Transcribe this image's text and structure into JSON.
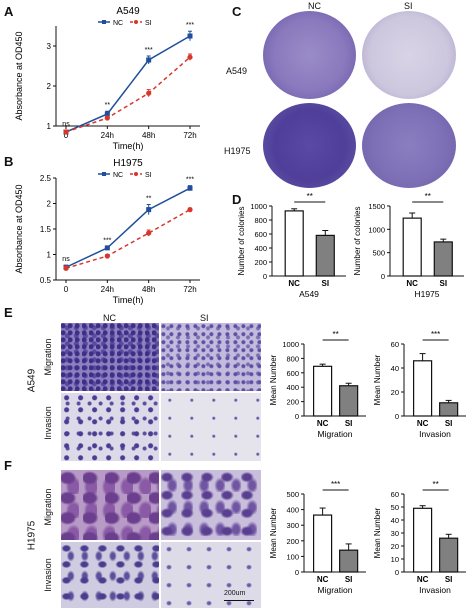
{
  "panels": {
    "A": "A",
    "B": "B",
    "C": "C",
    "D": "D",
    "E": "E",
    "F": "F"
  },
  "colors": {
    "nc": "#1f4e9c",
    "si": "#d7372b",
    "bar_nc": "#ffffff",
    "bar_si": "#808080",
    "stain": "#5a3f9a"
  },
  "panel_c": {
    "col_labels": [
      "NC",
      "SI"
    ],
    "row_labels": [
      "A549",
      "H1975"
    ]
  },
  "panel_e": {
    "cell_line": "A549",
    "col_labels": [
      "NC",
      "SI"
    ],
    "row_labels": [
      "Migration",
      "Invasion"
    ]
  },
  "panel_f": {
    "cell_line": "H1975",
    "row_labels": [
      "Migration",
      "Invasion"
    ],
    "scale_bar": "200um"
  },
  "chart_data": [
    {
      "id": "A",
      "type": "line",
      "title": "A549",
      "xlabel": "Time(h)",
      "ylabel": "Absorbance at OD450",
      "categories": [
        "0",
        "24h",
        "48h",
        "72h"
      ],
      "ylim": [
        1,
        3.5
      ],
      "yticks": [
        1,
        2,
        3
      ],
      "series": [
        {
          "name": "NC",
          "values": [
            0.85,
            1.3,
            2.65,
            3.25
          ],
          "err": [
            0.05,
            0.07,
            0.1,
            0.12
          ]
        },
        {
          "name": "SI",
          "values": [
            0.85,
            1.2,
            1.82,
            2.72
          ],
          "err": [
            0.05,
            0.05,
            0.09,
            0.08
          ]
        }
      ],
      "significance": [
        "ns",
        "**",
        "***",
        "***"
      ]
    },
    {
      "id": "B",
      "type": "line",
      "title": "H1975",
      "xlabel": "Time(h)",
      "ylabel": "Absorbance at OD450",
      "categories": [
        "0",
        "24h",
        "48h",
        "72h"
      ],
      "ylim": [
        0.5,
        2.5
      ],
      "yticks": [
        0.5,
        1.0,
        1.5,
        2.0,
        2.5
      ],
      "series": [
        {
          "name": "NC",
          "values": [
            0.75,
            1.13,
            1.88,
            2.3
          ],
          "err": [
            0.04,
            0.03,
            0.1,
            0.05
          ]
        },
        {
          "name": "SI",
          "values": [
            0.73,
            0.97,
            1.42,
            1.88
          ],
          "err": [
            0.04,
            0.03,
            0.06,
            0.03
          ]
        }
      ],
      "significance": [
        "ns",
        "***",
        "**",
        "***"
      ]
    },
    {
      "id": "D1",
      "type": "bar",
      "title": "A549",
      "ylabel": "Number of colonies",
      "categories": [
        "NC",
        "SI"
      ],
      "values": [
        930,
        580
      ],
      "err": [
        30,
        70
      ],
      "ylim": [
        0,
        1000
      ],
      "yticks": [
        0,
        200,
        400,
        600,
        800,
        1000
      ],
      "significance": "**"
    },
    {
      "id": "D2",
      "type": "bar",
      "title": "H1975",
      "ylabel": "Number of colonies",
      "categories": [
        "NC",
        "SI"
      ],
      "values": [
        1240,
        730
      ],
      "err": [
        110,
        60
      ],
      "ylim": [
        0,
        1500
      ],
      "yticks": [
        0,
        500,
        1000,
        1500
      ],
      "significance": "**"
    },
    {
      "id": "E1",
      "type": "bar",
      "title": "Migration",
      "ylabel": "Mean Number",
      "categories": [
        "NC",
        "SI"
      ],
      "values": [
        690,
        420
      ],
      "err": [
        30,
        35
      ],
      "ylim": [
        0,
        1000
      ],
      "yticks": [
        0,
        200,
        400,
        600,
        800,
        1000
      ],
      "significance": "**"
    },
    {
      "id": "E2",
      "type": "bar",
      "title": "Invasion",
      "ylabel": "Mean Number",
      "categories": [
        "NC",
        "SI"
      ],
      "values": [
        46,
        11
      ],
      "err": [
        6,
        2
      ],
      "ylim": [
        0,
        60
      ],
      "yticks": [
        0,
        20,
        40,
        60
      ],
      "significance": "***"
    },
    {
      "id": "F1",
      "type": "bar",
      "title": "Migration",
      "ylabel": "Mean Number",
      "categories": [
        "NC",
        "SI"
      ],
      "values": [
        365,
        140
      ],
      "err": [
        45,
        40
      ],
      "ylim": [
        0,
        500
      ],
      "yticks": [
        0,
        100,
        200,
        300,
        400,
        500
      ],
      "significance": "***"
    },
    {
      "id": "F2",
      "type": "bar",
      "title": "Invasion",
      "ylabel": "Mean Number",
      "categories": [
        "NC",
        "SI"
      ],
      "values": [
        49,
        26
      ],
      "err": [
        2,
        3
      ],
      "ylim": [
        0,
        60
      ],
      "yticks": [
        0,
        10,
        20,
        30,
        40,
        50,
        60
      ],
      "significance": "**"
    }
  ]
}
